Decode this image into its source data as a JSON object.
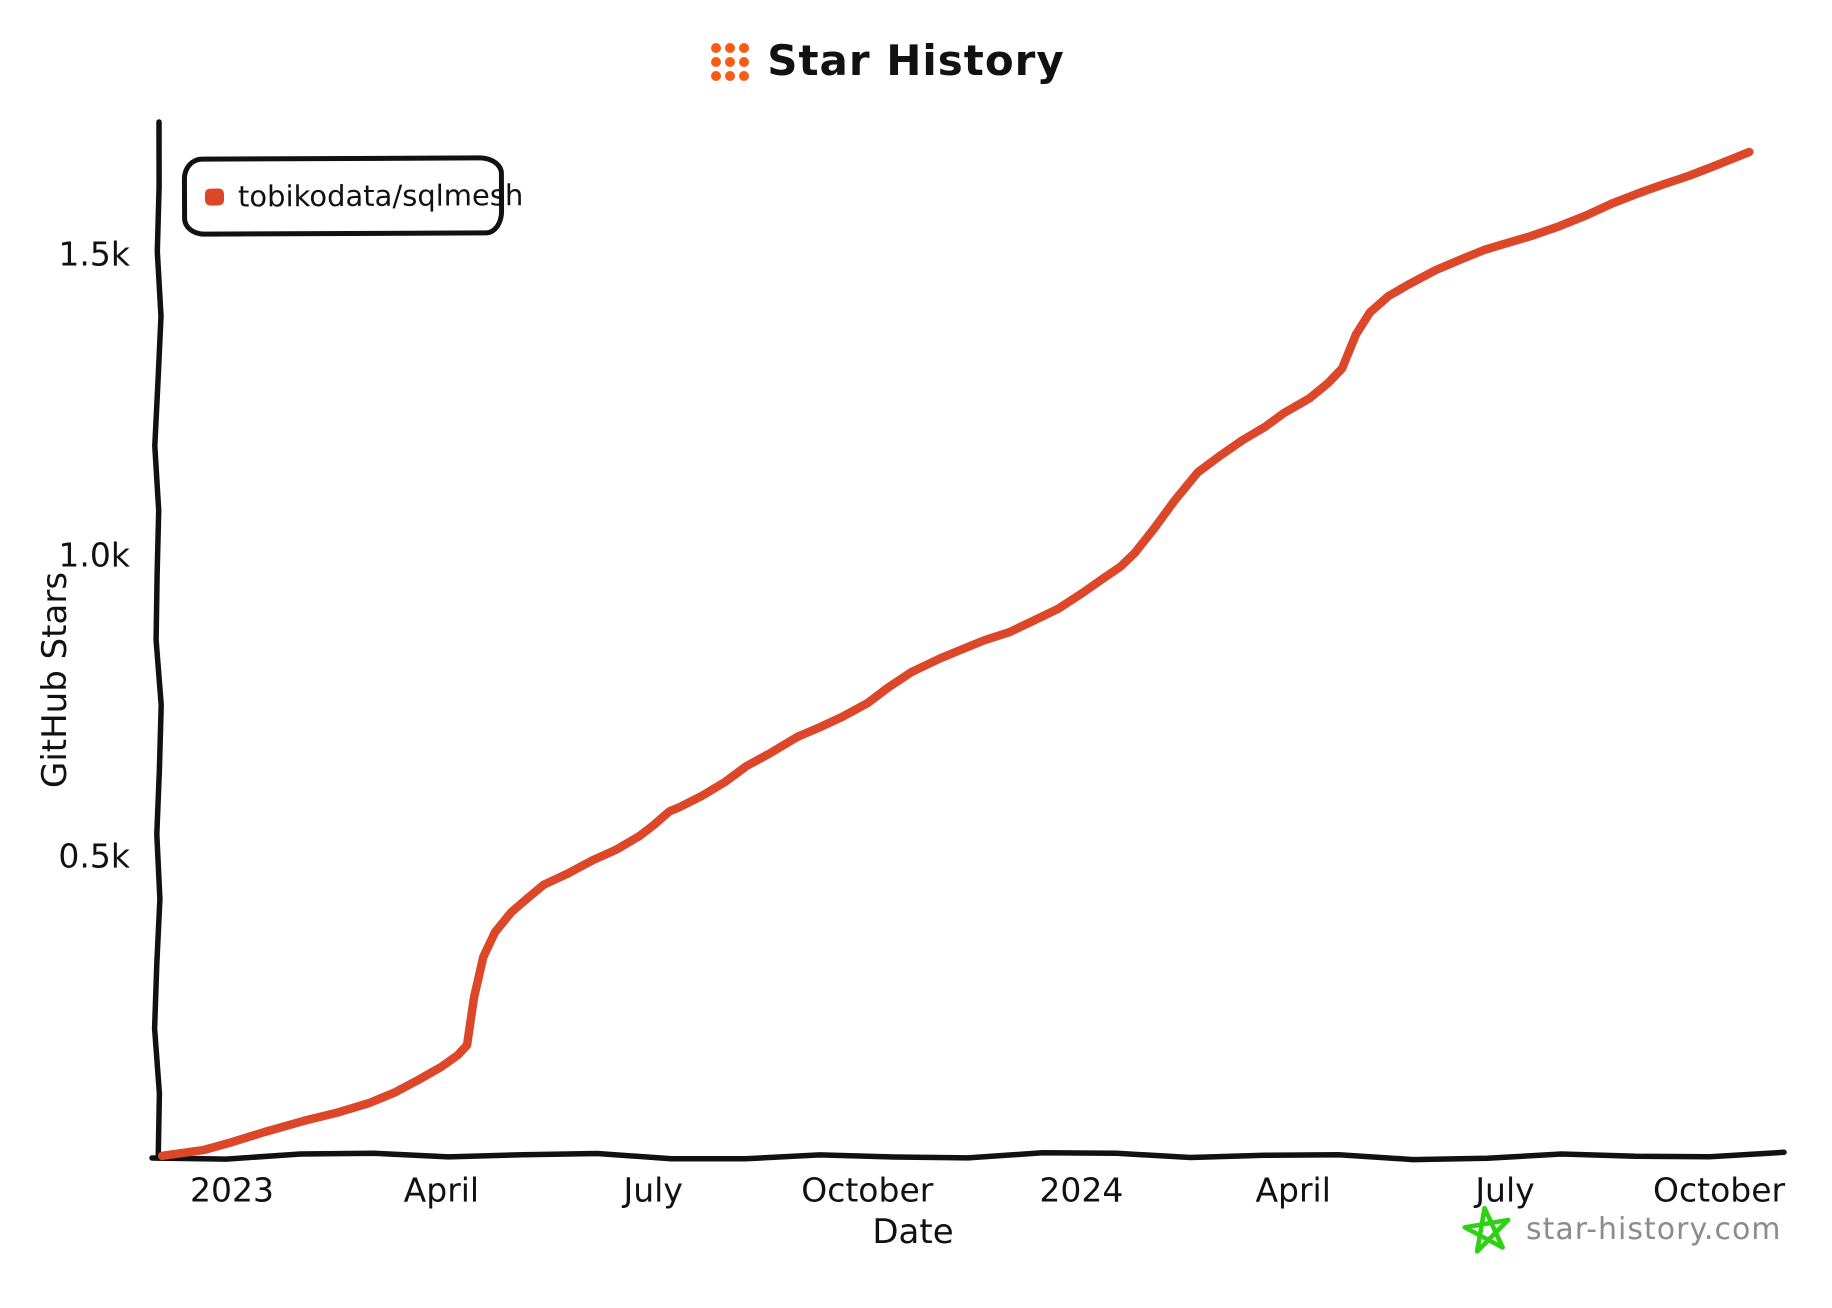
{
  "header": {
    "title": "Star History",
    "logo_color": "#F95B15"
  },
  "legend": {
    "items": [
      {
        "label": "tobikodata/sqlmesh",
        "color": "#DC472A"
      }
    ]
  },
  "footer": {
    "site": "star-history.com",
    "star_color": "#2ED114",
    "text_color": "#8C8C8C"
  },
  "chart_data": {
    "type": "line",
    "title": "Star History",
    "xlabel": "Date",
    "ylabel": "GitHub Stars",
    "grid": false,
    "legend_position": "top-left",
    "axis_color": "#111111",
    "x_range": [
      "2022-12-02",
      "2024-11-01"
    ],
    "y_range": [
      0,
      1715
    ],
    "x_ticks": [
      {
        "date": "2023-01-01",
        "label": "2023"
      },
      {
        "date": "2023-04-01",
        "label": "April"
      },
      {
        "date": "2023-07-01",
        "label": "July"
      },
      {
        "date": "2023-10-01",
        "label": "October"
      },
      {
        "date": "2024-01-01",
        "label": "2024"
      },
      {
        "date": "2024-04-01",
        "label": "April"
      },
      {
        "date": "2024-07-01",
        "label": "July"
      },
      {
        "date": "2024-10-01",
        "label": "October"
      }
    ],
    "y_ticks": [
      {
        "value": 500,
        "label": "0.5k"
      },
      {
        "value": 1000,
        "label": "1.0k"
      },
      {
        "value": 1500,
        "label": "1.5k"
      }
    ],
    "series": [
      {
        "name": "tobikodata/sqlmesh",
        "color": "#DC472A",
        "points": [
          [
            "2022-12-02",
            2
          ],
          [
            "2022-12-20",
            14
          ],
          [
            "2023-01-01",
            26
          ],
          [
            "2023-01-15",
            40
          ],
          [
            "2023-02-01",
            58
          ],
          [
            "2023-02-15",
            74
          ],
          [
            "2023-03-01",
            92
          ],
          [
            "2023-03-12",
            108
          ],
          [
            "2023-03-22",
            126
          ],
          [
            "2023-04-01",
            148
          ],
          [
            "2023-04-08",
            170
          ],
          [
            "2023-04-12",
            188
          ],
          [
            "2023-04-15",
            265
          ],
          [
            "2023-04-19",
            330
          ],
          [
            "2023-04-24",
            372
          ],
          [
            "2023-05-01",
            408
          ],
          [
            "2023-05-08",
            432
          ],
          [
            "2023-05-15",
            452
          ],
          [
            "2023-05-25",
            468
          ],
          [
            "2023-06-05",
            492
          ],
          [
            "2023-06-15",
            512
          ],
          [
            "2023-06-25",
            535
          ],
          [
            "2023-07-01",
            550
          ],
          [
            "2023-07-08",
            572
          ],
          [
            "2023-07-12",
            580
          ],
          [
            "2023-07-22",
            602
          ],
          [
            "2023-08-01",
            625
          ],
          [
            "2023-08-10",
            648
          ],
          [
            "2023-08-20",
            668
          ],
          [
            "2023-09-01",
            698
          ],
          [
            "2023-09-10",
            715
          ],
          [
            "2023-09-20",
            732
          ],
          [
            "2023-10-01",
            752
          ],
          [
            "2023-10-10",
            778
          ],
          [
            "2023-10-20",
            806
          ],
          [
            "2023-11-01",
            830
          ],
          [
            "2023-11-10",
            843
          ],
          [
            "2023-11-20",
            856
          ],
          [
            "2023-12-01",
            870
          ],
          [
            "2023-12-12",
            893
          ],
          [
            "2023-12-22",
            913
          ],
          [
            "2024-01-01",
            936
          ],
          [
            "2024-01-10",
            958
          ],
          [
            "2024-01-18",
            980
          ],
          [
            "2024-01-24",
            1005
          ],
          [
            "2024-02-01",
            1045
          ],
          [
            "2024-02-10",
            1090
          ],
          [
            "2024-02-20",
            1135
          ],
          [
            "2024-03-01",
            1165
          ],
          [
            "2024-03-10",
            1192
          ],
          [
            "2024-03-20",
            1215
          ],
          [
            "2024-03-28",
            1235
          ],
          [
            "2024-04-08",
            1258
          ],
          [
            "2024-04-16",
            1285
          ],
          [
            "2024-04-22",
            1312
          ],
          [
            "2024-04-28",
            1368
          ],
          [
            "2024-05-04",
            1402
          ],
          [
            "2024-05-12",
            1428
          ],
          [
            "2024-05-20",
            1448
          ],
          [
            "2024-06-01",
            1475
          ],
          [
            "2024-06-12",
            1492
          ],
          [
            "2024-06-22",
            1505
          ],
          [
            "2024-07-01",
            1515
          ],
          [
            "2024-07-12",
            1530
          ],
          [
            "2024-07-24",
            1548
          ],
          [
            "2024-08-05",
            1565
          ],
          [
            "2024-08-16",
            1582
          ],
          [
            "2024-08-28",
            1600
          ],
          [
            "2024-09-08",
            1618
          ],
          [
            "2024-09-18",
            1632
          ],
          [
            "2024-09-28",
            1645
          ],
          [
            "2024-10-08",
            1658
          ],
          [
            "2024-10-14",
            1668
          ]
        ]
      }
    ]
  }
}
